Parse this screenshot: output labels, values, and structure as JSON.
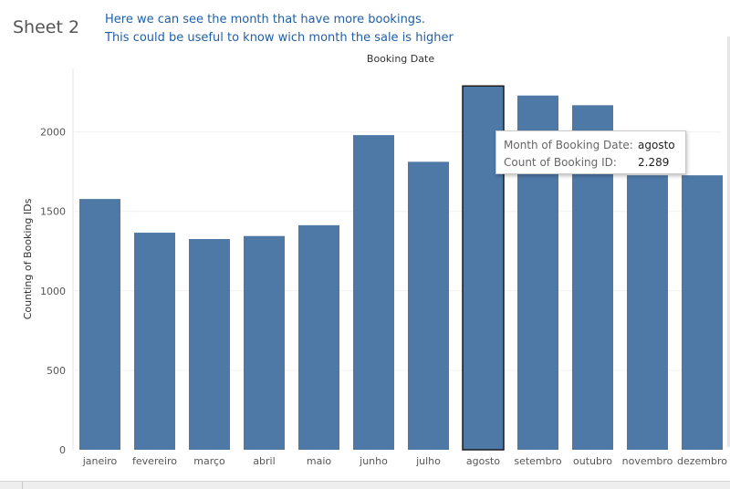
{
  "sheet": {
    "title": "Sheet 2",
    "caption_line1": "Here we can see the month that have more bookings.",
    "caption_line2": "This could be useful to know wich month the sale is higher"
  },
  "colors": {
    "bar": "#4e79a7",
    "highlight_border": "#1a1a1a",
    "caption": "#1f5fa8"
  },
  "tooltip": {
    "label1": "Month of Booking Date:",
    "value1": "agosto",
    "label2": "Count of Booking ID:",
    "value2": "2.289"
  },
  "chart_data": {
    "type": "bar",
    "title": "Booking Date",
    "xlabel": "",
    "ylabel": "Counting of Booking IDs",
    "categories": [
      "janeiro",
      "fevereiro",
      "março",
      "abril",
      "maio",
      "junho",
      "julho",
      "agosto",
      "setembro",
      "outubro",
      "novembro",
      "dezembro"
    ],
    "values": [
      1578,
      1366,
      1326,
      1345,
      1413,
      1980,
      1812,
      2289,
      2229,
      2168,
      1727,
      1727
    ],
    "ylim": [
      0,
      2300
    ],
    "yticks": [
      0,
      500,
      1000,
      1500,
      2000
    ],
    "highlighted": "agosto",
    "grid": true
  }
}
